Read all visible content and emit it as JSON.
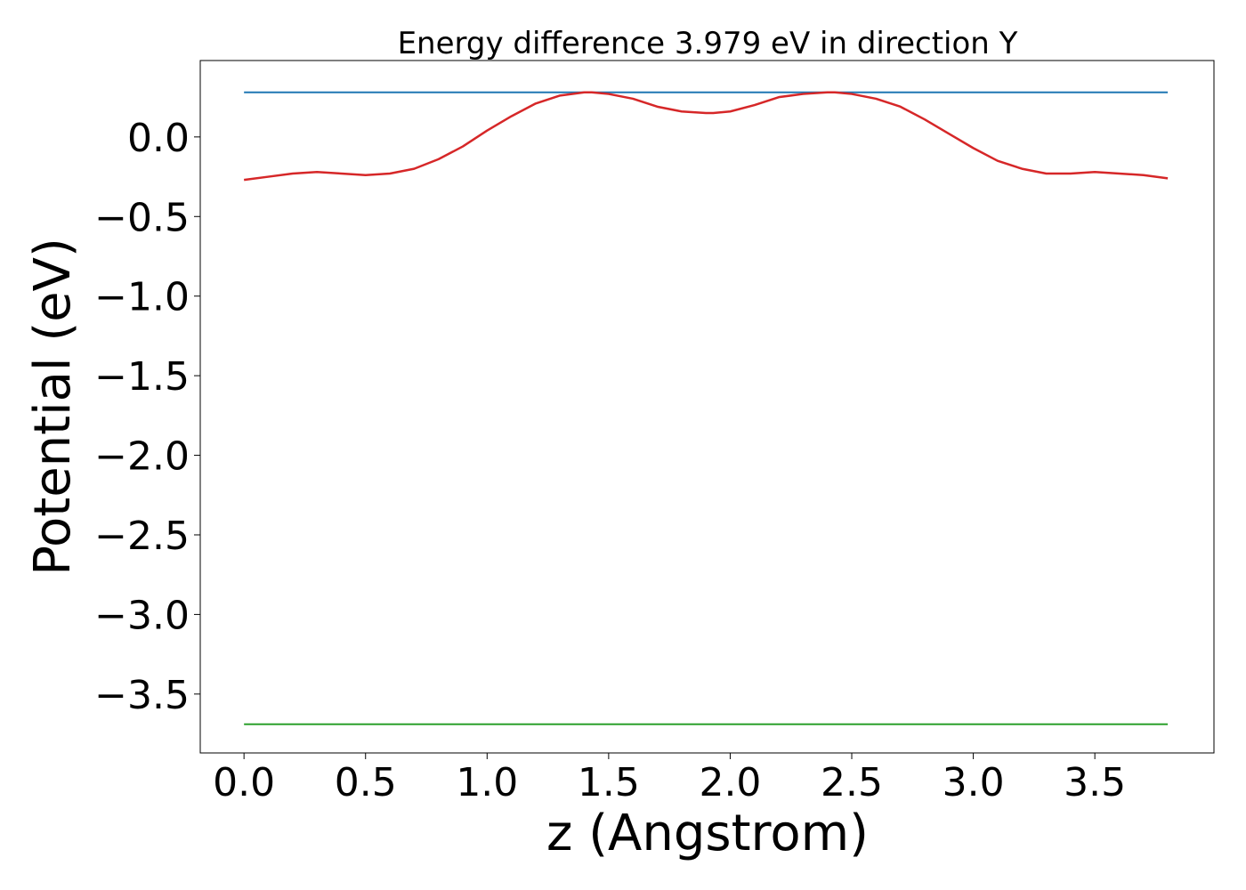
{
  "chart_data": {
    "type": "line",
    "title": "Energy difference 3.979 eV in direction Y",
    "xlabel": "z (Angstrom)",
    "ylabel": "Potential (eV)",
    "xlim": [
      -0.18,
      3.99
    ],
    "ylim": [
      -3.87,
      0.48
    ],
    "xticks": [
      0.0,
      0.5,
      1.0,
      1.5,
      2.0,
      2.5,
      3.0,
      3.5
    ],
    "xtick_labels": [
      "0.0",
      "0.5",
      "1.0",
      "1.5",
      "2.0",
      "2.5",
      "3.0",
      "3.5"
    ],
    "yticks": [
      0.0,
      -0.5,
      -1.0,
      -1.5,
      -2.0,
      -2.5,
      -3.0,
      -3.5
    ],
    "ytick_labels": [
      "0.0",
      "−0.5",
      "−1.0",
      "−1.5",
      "−2.0",
      "−2.5",
      "−3.0",
      "−3.5"
    ],
    "grid": false,
    "series": [
      {
        "color": "#1f77b4",
        "x": [
          0.0,
          3.8
        ],
        "y": [
          0.28,
          0.28
        ]
      },
      {
        "color": "#d62728",
        "x": [
          0.0,
          0.1,
          0.2,
          0.3,
          0.4,
          0.5,
          0.6,
          0.7,
          0.8,
          0.9,
          1.0,
          1.1,
          1.2,
          1.3,
          1.4,
          1.43,
          1.5,
          1.6,
          1.7,
          1.8,
          1.9,
          1.93,
          2.0,
          2.1,
          2.2,
          2.3,
          2.4,
          2.43,
          2.5,
          2.6,
          2.7,
          2.8,
          2.9,
          3.0,
          3.1,
          3.2,
          3.3,
          3.4,
          3.5,
          3.6,
          3.7,
          3.8
        ],
        "y": [
          -0.27,
          -0.25,
          -0.23,
          -0.22,
          -0.23,
          -0.24,
          -0.23,
          -0.2,
          -0.14,
          -0.06,
          0.04,
          0.13,
          0.21,
          0.26,
          0.28,
          0.28,
          0.27,
          0.24,
          0.19,
          0.16,
          0.15,
          0.15,
          0.16,
          0.2,
          0.25,
          0.27,
          0.28,
          0.28,
          0.27,
          0.24,
          0.19,
          0.11,
          0.02,
          -0.07,
          -0.15,
          -0.2,
          -0.23,
          -0.23,
          -0.22,
          -0.23,
          -0.24,
          -0.26
        ]
      },
      {
        "color": "#2ca02c",
        "x": [
          0.0,
          3.8
        ],
        "y": [
          -3.69,
          -3.69
        ]
      }
    ]
  }
}
